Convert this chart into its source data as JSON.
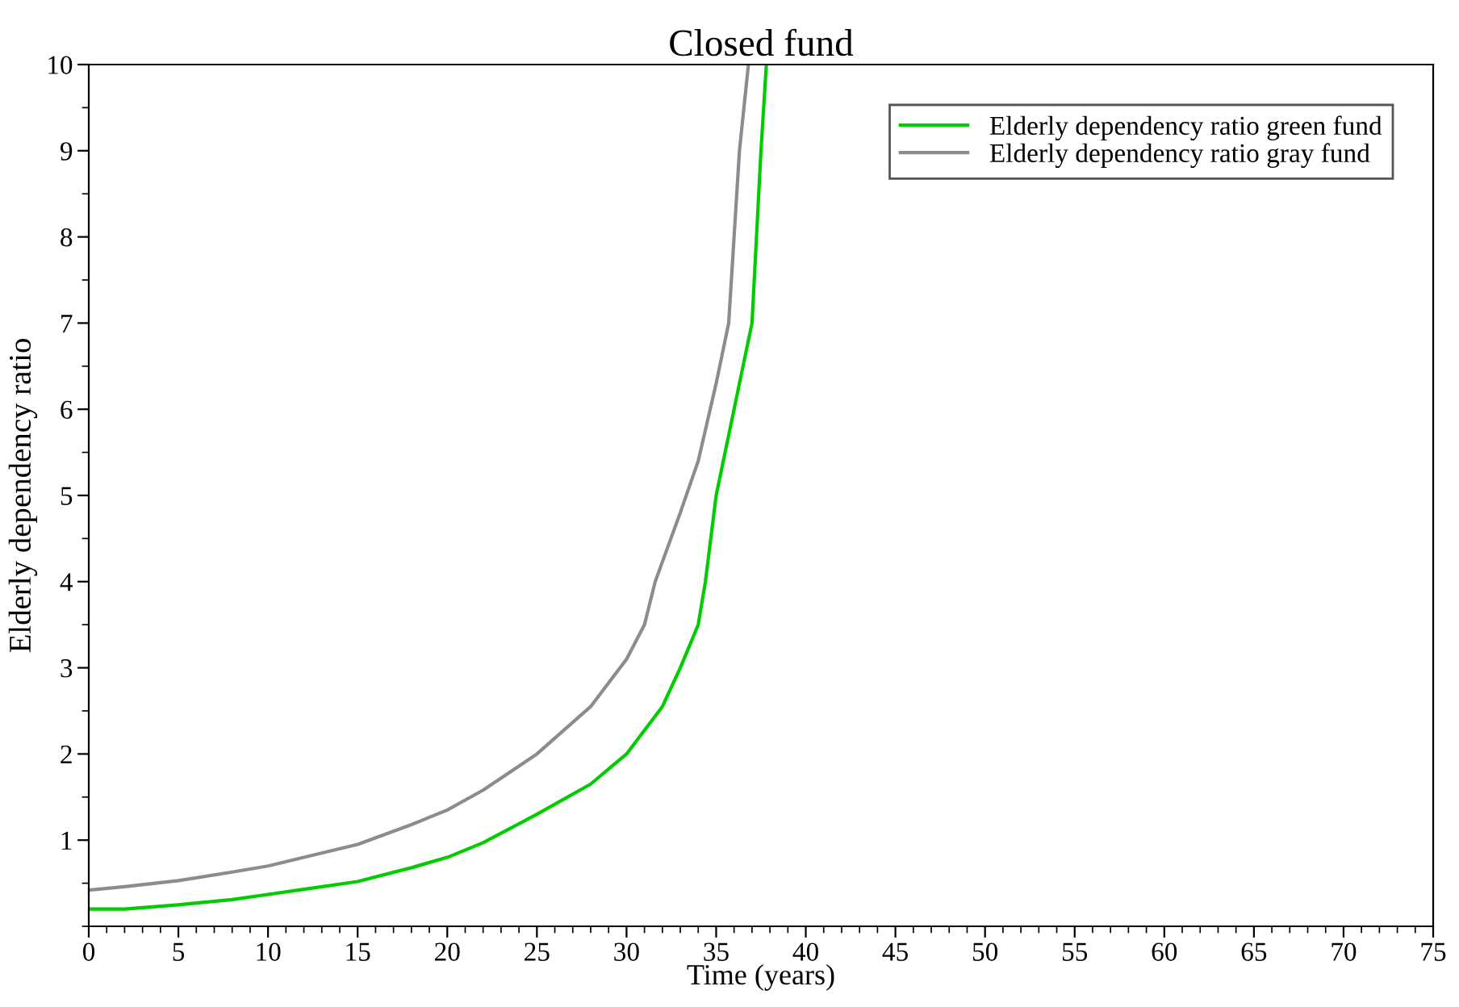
{
  "chart_data": {
    "type": "line",
    "title": "Closed fund",
    "xlabel": "Time (years)",
    "ylabel": "Elderly dependency ratio",
    "xlim": [
      0,
      75
    ],
    "xticks": [
      0,
      5,
      10,
      15,
      20,
      25,
      30,
      35,
      40,
      45,
      50,
      55,
      60,
      65,
      70,
      75
    ],
    "ylim": [
      0,
      10
    ],
    "yticks": [
      1,
      2,
      3,
      4,
      5,
      6,
      7,
      8,
      9,
      10
    ],
    "legend": "top right",
    "grid": false,
    "series": [
      {
        "name": "Elderly dependency ratio green fund",
        "color": "#00cc00",
        "x": [
          0,
          2,
          5,
          8,
          10,
          12,
          15,
          18,
          20,
          22,
          25,
          28,
          30,
          32,
          33,
          34,
          34.4,
          35,
          36,
          37,
          37.5,
          37.8
        ],
        "values": [
          0.2,
          0.2,
          0.25,
          0.31,
          0.37,
          0.43,
          0.52,
          0.68,
          0.8,
          0.97,
          1.3,
          1.65,
          2.0,
          2.55,
          3.0,
          3.5,
          4.0,
          5.0,
          6.0,
          7.0,
          9.0,
          10
        ]
      },
      {
        "name": "Elderly dependency ratio gray fund",
        "color": "#8c8c8c",
        "x": [
          0,
          2,
          5,
          8,
          10,
          12,
          15,
          18,
          20,
          22,
          25,
          28,
          30,
          31,
          31.6,
          33,
          34,
          35,
          35.7,
          36.3,
          36.8
        ],
        "values": [
          0.42,
          0.46,
          0.53,
          0.63,
          0.7,
          0.8,
          0.95,
          1.18,
          1.35,
          1.58,
          2.0,
          2.55,
          3.1,
          3.5,
          4.0,
          4.8,
          5.4,
          6.3,
          7.0,
          9.0,
          10
        ]
      }
    ]
  }
}
